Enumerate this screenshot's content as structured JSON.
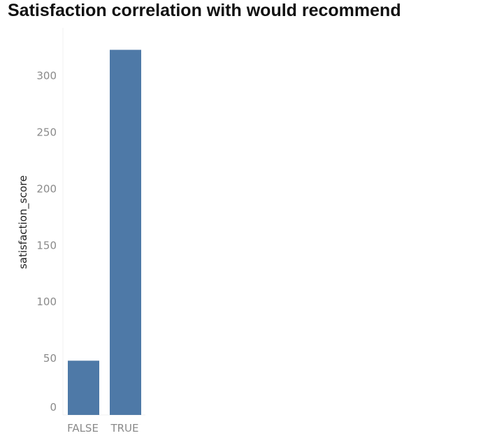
{
  "chart_data": {
    "type": "bar",
    "title": "Satisfaction correlation with would recommend",
    "xlabel": "",
    "ylabel": "satisfaction_score",
    "categories": [
      "FALSE",
      "TRUE"
    ],
    "values": [
      48,
      323
    ],
    "ylim": [
      0,
      330
    ],
    "yticks": [
      0,
      50,
      100,
      150,
      200,
      250,
      300
    ],
    "grid": false,
    "legend": "none",
    "colors": {
      "bar": "#4e79a7",
      "tick_label": "#8a8a8a",
      "axis_title": "#222222",
      "axis_line": "#f0f0f0"
    }
  }
}
